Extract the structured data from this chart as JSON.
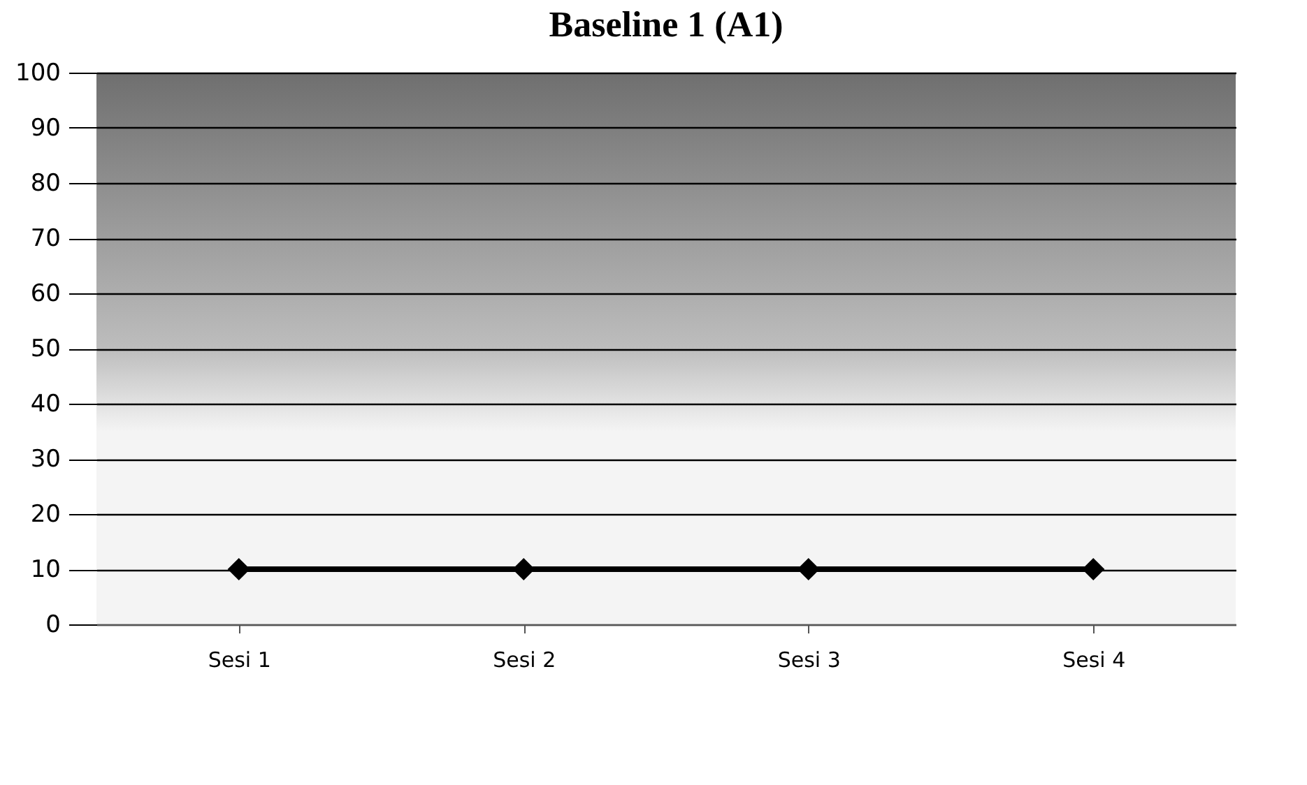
{
  "chart_data": {
    "type": "line",
    "title": "Baseline 1 (A1)",
    "categories": [
      "Sesi 1",
      "Sesi 2",
      "Sesi 3",
      "Sesi 4"
    ],
    "series": [
      {
        "color": "#000000",
        "values": [
          10,
          10,
          10,
          10
        ]
      }
    ],
    "ylim": [
      0,
      100
    ],
    "yticks": [
      0,
      10,
      20,
      30,
      40,
      50,
      60,
      70,
      80,
      90,
      100
    ],
    "grid": "y",
    "marker": "diamond"
  }
}
